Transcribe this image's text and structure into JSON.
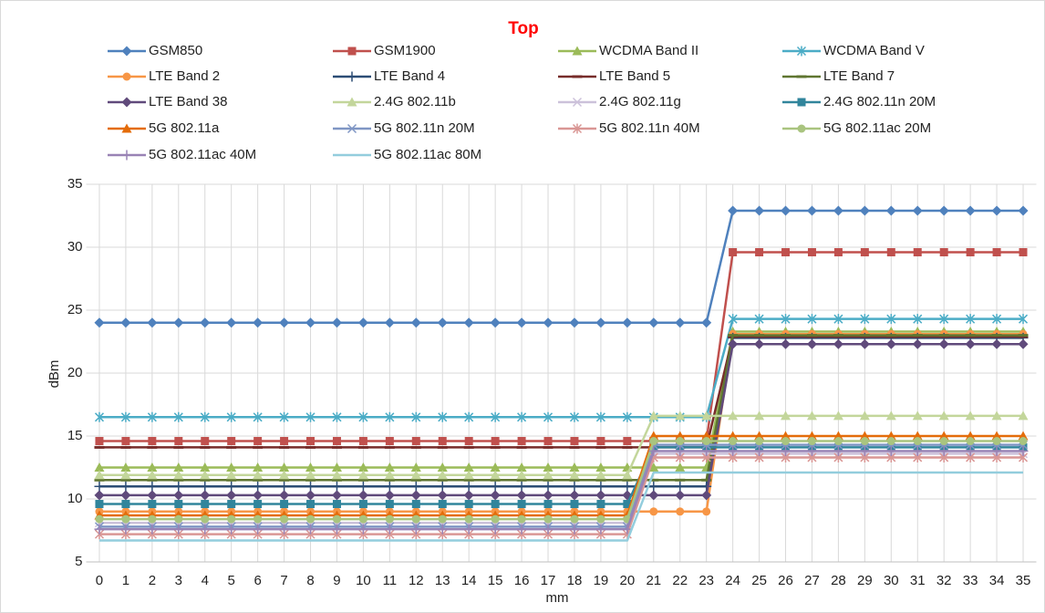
{
  "chart_data": {
    "type": "line",
    "title": "Top",
    "x_label": "mm",
    "y_label": "dBm",
    "categories": [
      "0",
      "1",
      "2",
      "3",
      "4",
      "5",
      "6",
      "7",
      "8",
      "9",
      "10",
      "11",
      "12",
      "13",
      "14",
      "15",
      "16",
      "17",
      "18",
      "19",
      "20",
      "21",
      "22",
      "23",
      "24",
      "25",
      "26",
      "27",
      "28",
      "29",
      "30",
      "31",
      "32",
      "33",
      "34",
      "35"
    ],
    "ylim": [
      5,
      35
    ],
    "yticks": [
      5,
      10,
      15,
      20,
      25,
      30,
      35
    ],
    "grid": true,
    "series": [
      {
        "name": "GSM850",
        "color": "#4f81bd",
        "marker": "diamond",
        "values": [
          24,
          24,
          24,
          24,
          24,
          24,
          24,
          24,
          24,
          24,
          24,
          24,
          24,
          24,
          24,
          24,
          24,
          24,
          24,
          24,
          24,
          24,
          24,
          24,
          32.9,
          32.9,
          32.9,
          32.9,
          32.9,
          32.9,
          32.9,
          32.9,
          32.9,
          32.9,
          32.9,
          32.9
        ]
      },
      {
        "name": "GSM1900",
        "color": "#c0504d",
        "marker": "square",
        "values": [
          14.6,
          14.6,
          14.6,
          14.6,
          14.6,
          14.6,
          14.6,
          14.6,
          14.6,
          14.6,
          14.6,
          14.6,
          14.6,
          14.6,
          14.6,
          14.6,
          14.6,
          14.6,
          14.6,
          14.6,
          14.6,
          14.6,
          14.6,
          14.6,
          29.6,
          29.6,
          29.6,
          29.6,
          29.6,
          29.6,
          29.6,
          29.6,
          29.6,
          29.6,
          29.6,
          29.6
        ]
      },
      {
        "name": "WCDMA Band II",
        "color": "#9bbb59",
        "marker": "triangle",
        "values": [
          12.5,
          12.5,
          12.5,
          12.5,
          12.5,
          12.5,
          12.5,
          12.5,
          12.5,
          12.5,
          12.5,
          12.5,
          12.5,
          12.5,
          12.5,
          12.5,
          12.5,
          12.5,
          12.5,
          12.5,
          12.5,
          12.5,
          12.5,
          12.5,
          23.3,
          23.3,
          23.3,
          23.3,
          23.3,
          23.3,
          23.3,
          23.3,
          23.3,
          23.3,
          23.3,
          23.3
        ]
      },
      {
        "name": "WCDMA Band V",
        "color": "#4bacc6",
        "marker": "star",
        "values": [
          16.5,
          16.5,
          16.5,
          16.5,
          16.5,
          16.5,
          16.5,
          16.5,
          16.5,
          16.5,
          16.5,
          16.5,
          16.5,
          16.5,
          16.5,
          16.5,
          16.5,
          16.5,
          16.5,
          16.5,
          16.5,
          16.5,
          16.5,
          16.5,
          24.3,
          24.3,
          24.3,
          24.3,
          24.3,
          24.3,
          24.3,
          24.3,
          24.3,
          24.3,
          24.3,
          24.3
        ]
      },
      {
        "name": "LTE Band 2",
        "color": "#f79646",
        "marker": "circle",
        "values": [
          9,
          9,
          9,
          9,
          9,
          9,
          9,
          9,
          9,
          9,
          9,
          9,
          9,
          9,
          9,
          9,
          9,
          9,
          9,
          9,
          9,
          9,
          9,
          9,
          23.1,
          23.1,
          23.1,
          23.1,
          23.1,
          23.1,
          23.1,
          23.1,
          23.1,
          23.1,
          23.1,
          23.1
        ]
      },
      {
        "name": "LTE Band 4",
        "color": "#2c4d75",
        "marker": "plus",
        "values": [
          11,
          11,
          11,
          11,
          11,
          11,
          11,
          11,
          11,
          11,
          11,
          11,
          11,
          11,
          11,
          11,
          11,
          11,
          11,
          11,
          11,
          11,
          11,
          11,
          22.8,
          22.8,
          22.8,
          22.8,
          22.8,
          22.8,
          22.8,
          22.8,
          22.8,
          22.8,
          22.8,
          22.8
        ]
      },
      {
        "name": "LTE Band 5",
        "color": "#772c2a",
        "marker": "dash",
        "values": [
          14.1,
          14.1,
          14.1,
          14.1,
          14.1,
          14.1,
          14.1,
          14.1,
          14.1,
          14.1,
          14.1,
          14.1,
          14.1,
          14.1,
          14.1,
          14.1,
          14.1,
          14.1,
          14.1,
          14.1,
          14.1,
          14.1,
          14.1,
          14.1,
          22.9,
          22.9,
          22.9,
          22.9,
          22.9,
          22.9,
          22.9,
          22.9,
          22.9,
          22.9,
          22.9,
          22.9
        ]
      },
      {
        "name": "LTE Band 7",
        "color": "#5f7530",
        "marker": "dash",
        "values": [
          11.5,
          11.5,
          11.5,
          11.5,
          11.5,
          11.5,
          11.5,
          11.5,
          11.5,
          11.5,
          11.5,
          11.5,
          11.5,
          11.5,
          11.5,
          11.5,
          11.5,
          11.5,
          11.5,
          11.5,
          11.5,
          11.5,
          11.5,
          11.5,
          23,
          23,
          23,
          23,
          23,
          23,
          23,
          23,
          23,
          23,
          23,
          23
        ]
      },
      {
        "name": "LTE Band 38",
        "color": "#604a7b",
        "marker": "diamond",
        "values": [
          10.3,
          10.3,
          10.3,
          10.3,
          10.3,
          10.3,
          10.3,
          10.3,
          10.3,
          10.3,
          10.3,
          10.3,
          10.3,
          10.3,
          10.3,
          10.3,
          10.3,
          10.3,
          10.3,
          10.3,
          10.3,
          10.3,
          10.3,
          10.3,
          22.3,
          22.3,
          22.3,
          22.3,
          22.3,
          22.3,
          22.3,
          22.3,
          22.3,
          22.3,
          22.3,
          22.3
        ]
      },
      {
        "name": "2.4G 802.11b",
        "color": "#c3d69b",
        "marker": "triangle",
        "values": [
          11.9,
          11.9,
          11.9,
          11.9,
          11.9,
          11.9,
          11.9,
          11.9,
          11.9,
          11.9,
          11.9,
          11.9,
          11.9,
          11.9,
          11.9,
          11.9,
          11.9,
          11.9,
          11.9,
          11.9,
          11.9,
          16.6,
          16.6,
          16.6,
          16.6,
          16.6,
          16.6,
          16.6,
          16.6,
          16.6,
          16.6,
          16.6,
          16.6,
          16.6,
          16.6,
          16.6
        ]
      },
      {
        "name": "2.4G 802.11g",
        "color": "#ccc1da",
        "marker": "x",
        "values": [
          8.1,
          8.1,
          8.1,
          8.1,
          8.1,
          8.1,
          8.1,
          8.1,
          8.1,
          8.1,
          8.1,
          8.1,
          8.1,
          8.1,
          8.1,
          8.1,
          8.1,
          8.1,
          8.1,
          8.1,
          8.1,
          13.6,
          13.6,
          13.6,
          13.6,
          13.6,
          13.6,
          13.6,
          13.6,
          13.6,
          13.6,
          13.6,
          13.6,
          13.6,
          13.6,
          13.6
        ]
      },
      {
        "name": "2.4G 802.11n 20M",
        "color": "#31859c",
        "marker": "square",
        "values": [
          9.6,
          9.6,
          9.6,
          9.6,
          9.6,
          9.6,
          9.6,
          9.6,
          9.6,
          9.6,
          9.6,
          9.6,
          9.6,
          9.6,
          9.6,
          9.6,
          9.6,
          9.6,
          9.6,
          9.6,
          9.6,
          14.1,
          14.1,
          14.1,
          14.1,
          14.1,
          14.1,
          14.1,
          14.1,
          14.1,
          14.1,
          14.1,
          14.1,
          14.1,
          14.1,
          14.1
        ]
      },
      {
        "name": "5G 802.11a",
        "color": "#e46c0a",
        "marker": "triangle",
        "values": [
          8.7,
          8.7,
          8.7,
          8.7,
          8.7,
          8.7,
          8.7,
          8.7,
          8.7,
          8.7,
          8.7,
          8.7,
          8.7,
          8.7,
          8.7,
          8.7,
          8.7,
          8.7,
          8.7,
          8.7,
          8.7,
          15,
          15,
          15,
          15,
          15,
          15,
          15,
          15,
          15,
          15,
          15,
          15,
          15,
          15,
          15
        ]
      },
      {
        "name": "5G 802.11n 20M",
        "color": "#7f96c4",
        "marker": "x",
        "values": [
          7.8,
          7.8,
          7.8,
          7.8,
          7.8,
          7.8,
          7.8,
          7.8,
          7.8,
          7.8,
          7.8,
          7.8,
          7.8,
          7.8,
          7.8,
          7.8,
          7.8,
          7.8,
          7.8,
          7.8,
          7.8,
          14.3,
          14.3,
          14.3,
          14.3,
          14.3,
          14.3,
          14.3,
          14.3,
          14.3,
          14.3,
          14.3,
          14.3,
          14.3,
          14.3,
          14.3
        ]
      },
      {
        "name": "5G 802.11n 40M",
        "color": "#d99694",
        "marker": "star",
        "values": [
          7.2,
          7.2,
          7.2,
          7.2,
          7.2,
          7.2,
          7.2,
          7.2,
          7.2,
          7.2,
          7.2,
          7.2,
          7.2,
          7.2,
          7.2,
          7.2,
          7.2,
          7.2,
          7.2,
          7.2,
          7.2,
          13.3,
          13.3,
          13.3,
          13.3,
          13.3,
          13.3,
          13.3,
          13.3,
          13.3,
          13.3,
          13.3,
          13.3,
          13.3,
          13.3,
          13.3
        ]
      },
      {
        "name": "5G 802.11ac 20M",
        "color": "#a9c47f",
        "marker": "circle",
        "values": [
          8.4,
          8.4,
          8.4,
          8.4,
          8.4,
          8.4,
          8.4,
          8.4,
          8.4,
          8.4,
          8.4,
          8.4,
          8.4,
          8.4,
          8.4,
          8.4,
          8.4,
          8.4,
          8.4,
          8.4,
          8.4,
          14.6,
          14.6,
          14.6,
          14.6,
          14.6,
          14.6,
          14.6,
          14.6,
          14.6,
          14.6,
          14.6,
          14.6,
          14.6,
          14.6,
          14.6
        ]
      },
      {
        "name": "5G 802.11ac 40M",
        "color": "#9983b5",
        "marker": "plus",
        "values": [
          7.6,
          7.6,
          7.6,
          7.6,
          7.6,
          7.6,
          7.6,
          7.6,
          7.6,
          7.6,
          7.6,
          7.6,
          7.6,
          7.6,
          7.6,
          7.6,
          7.6,
          7.6,
          7.6,
          7.6,
          7.6,
          13.8,
          13.8,
          13.8,
          13.8,
          13.8,
          13.8,
          13.8,
          13.8,
          13.8,
          13.8,
          13.8,
          13.8,
          13.8,
          13.8,
          13.8
        ]
      },
      {
        "name": "5G 802.11ac 80M",
        "color": "#93cddd",
        "marker": "none",
        "values": [
          6.7,
          6.7,
          6.7,
          6.7,
          6.7,
          6.7,
          6.7,
          6.7,
          6.7,
          6.7,
          6.7,
          6.7,
          6.7,
          6.7,
          6.7,
          6.7,
          6.7,
          6.7,
          6.7,
          6.7,
          6.7,
          12.1,
          12.1,
          12.1,
          12.1,
          12.1,
          12.1,
          12.1,
          12.1,
          12.1,
          12.1,
          12.1,
          12.1,
          12.1,
          12.1,
          12.1
        ]
      }
    ]
  }
}
